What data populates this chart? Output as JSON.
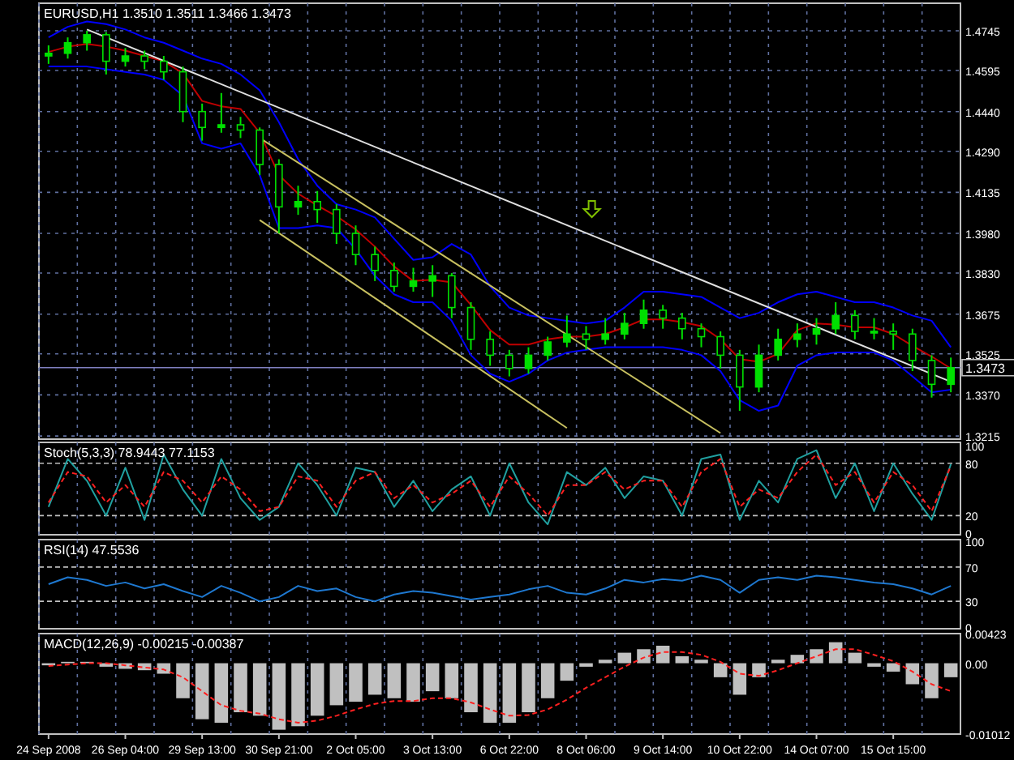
{
  "chart_data": [
    {
      "type": "candlestick",
      "title": "EURUSD,H1  1.3510 1.3511 1.3466 1.3473",
      "color": "#00e000",
      "categories": [
        null,
        null,
        null,
        null,
        null,
        null,
        null,
        null,
        null,
        null,
        null,
        null,
        null,
        null,
        null,
        null,
        null,
        null,
        null,
        null,
        null,
        null,
        null,
        null,
        null,
        null,
        null,
        null,
        null,
        null,
        null,
        null,
        null,
        null,
        null,
        null,
        null,
        null,
        null,
        null,
        null,
        null,
        null,
        null,
        null,
        null,
        null,
        null
      ],
      "ohlc": [
        [
          1.465,
          1.469,
          1.462,
          1.466
        ],
        [
          1.466,
          1.472,
          1.464,
          1.47
        ],
        [
          1.47,
          1.4745,
          1.467,
          1.473
        ],
        [
          1.473,
          1.474,
          1.458,
          1.463
        ],
        [
          1.463,
          1.468,
          1.461,
          1.465
        ],
        [
          1.465,
          1.467,
          1.46,
          1.463
        ],
        [
          1.463,
          1.465,
          1.456,
          1.459
        ],
        [
          1.459,
          1.461,
          1.44,
          1.444
        ],
        [
          1.444,
          1.447,
          1.433,
          1.438
        ],
        [
          1.438,
          1.451,
          1.436,
          1.439
        ],
        [
          1.439,
          1.442,
          1.434,
          1.437
        ],
        [
          1.437,
          1.438,
          1.42,
          1.424
        ],
        [
          1.424,
          1.426,
          1.398,
          1.408
        ],
        [
          1.408,
          1.416,
          1.405,
          1.41
        ],
        [
          1.41,
          1.414,
          1.402,
          1.407
        ],
        [
          1.407,
          1.409,
          1.394,
          1.398
        ],
        [
          1.398,
          1.401,
          1.386,
          1.39
        ],
        [
          1.39,
          1.393,
          1.38,
          1.384
        ],
        [
          1.384,
          1.387,
          1.376,
          1.378
        ],
        [
          1.378,
          1.385,
          1.376,
          1.38
        ],
        [
          1.38,
          1.386,
          1.374,
          1.382
        ],
        [
          1.382,
          1.383,
          1.366,
          1.37
        ],
        [
          1.37,
          1.372,
          1.354,
          1.358
        ],
        [
          1.358,
          1.361,
          1.348,
          1.352
        ],
        [
          1.352,
          1.354,
          1.344,
          1.347
        ],
        [
          1.347,
          1.355,
          1.345,
          1.352
        ],
        [
          1.352,
          1.359,
          1.35,
          1.357
        ],
        [
          1.357,
          1.367,
          1.355,
          1.36
        ],
        [
          1.36,
          1.363,
          1.354,
          1.358
        ],
        [
          1.358,
          1.366,
          1.356,
          1.36
        ],
        [
          1.36,
          1.368,
          1.358,
          1.364
        ],
        [
          1.364,
          1.373,
          1.362,
          1.369
        ],
        [
          1.369,
          1.371,
          1.362,
          1.366
        ],
        [
          1.366,
          1.368,
          1.358,
          1.362
        ],
        [
          1.362,
          1.364,
          1.355,
          1.359
        ],
        [
          1.359,
          1.361,
          1.347,
          1.352
        ],
        [
          1.352,
          1.354,
          1.331,
          1.34
        ],
        [
          1.34,
          1.356,
          1.338,
          1.352
        ],
        [
          1.352,
          1.362,
          1.35,
          1.358
        ],
        [
          1.358,
          1.364,
          1.355,
          1.36
        ],
        [
          1.36,
          1.366,
          1.356,
          1.362
        ],
        [
          1.362,
          1.372,
          1.36,
          1.367
        ],
        [
          1.367,
          1.369,
          1.358,
          1.361
        ],
        [
          1.361,
          1.366,
          1.358,
          1.361
        ],
        [
          1.361,
          1.364,
          1.354,
          1.36
        ],
        [
          1.36,
          1.362,
          1.346,
          1.35
        ],
        [
          1.35,
          1.352,
          1.336,
          1.341
        ],
        [
          1.341,
          1.3511,
          1.338,
          1.3473
        ]
      ],
      "series": [
        {
          "type": "line",
          "color": "#0000ff",
          "values": [
            1.472,
            1.476,
            1.478,
            1.477,
            1.475,
            1.472,
            1.47,
            1.467,
            1.464,
            1.462,
            1.458,
            1.452,
            1.44,
            1.426,
            1.416,
            1.409,
            1.407,
            1.404,
            1.396,
            1.388,
            1.389,
            1.394,
            1.39,
            1.378,
            1.37,
            1.367,
            1.366,
            1.365,
            1.364,
            1.365,
            1.37,
            1.376,
            1.376,
            1.375,
            1.374,
            1.37,
            1.366,
            1.368,
            1.372,
            1.375,
            1.376,
            1.374,
            1.372,
            1.372,
            1.37,
            1.367,
            1.365,
            1.355
          ]
        },
        {
          "type": "line",
          "color": "#0000ff",
          "values": [
            1.461,
            1.461,
            1.461,
            1.46,
            1.459,
            1.458,
            1.456,
            1.45,
            1.432,
            1.43,
            1.432,
            1.42,
            1.4,
            1.4,
            1.401,
            1.4,
            1.392,
            1.382,
            1.375,
            1.372,
            1.372,
            1.365,
            1.352,
            1.345,
            1.342,
            1.345,
            1.35,
            1.353,
            1.354,
            1.355,
            1.355,
            1.355,
            1.355,
            1.354,
            1.352,
            1.346,
            1.335,
            1.331,
            1.333,
            1.348,
            1.352,
            1.353,
            1.353,
            1.353,
            1.35,
            1.344,
            1.338,
            1.339
          ]
        },
        {
          "type": "line",
          "color": "#c00000",
          "values": [
            1.4665,
            1.4685,
            1.4695,
            1.4685,
            1.467,
            1.465,
            1.463,
            1.4585,
            1.448,
            1.446,
            1.445,
            1.436,
            1.42,
            1.413,
            1.4085,
            1.4045,
            1.3995,
            1.393,
            1.3855,
            1.38,
            1.3805,
            1.3795,
            1.371,
            1.3615,
            1.356,
            1.356,
            1.358,
            1.359,
            1.359,
            1.36,
            1.3625,
            1.3655,
            1.3655,
            1.3645,
            1.363,
            1.358,
            1.3505,
            1.3495,
            1.3525,
            1.3615,
            1.364,
            1.3635,
            1.3625,
            1.3625,
            1.36,
            1.3555,
            1.3515,
            1.347
          ]
        },
        {
          "type": "line",
          "color": "#e0e0e0",
          "values": [
            null,
            null,
            1.475,
            null,
            null,
            null,
            null,
            null,
            null,
            null,
            null,
            null,
            null,
            null,
            null,
            null,
            null,
            null,
            null,
            null,
            null,
            null,
            null,
            null,
            null,
            null,
            null,
            null,
            null,
            null,
            null,
            null,
            null,
            null,
            null,
            null,
            null,
            null,
            null,
            null,
            null,
            null,
            null,
            null,
            null,
            null,
            null,
            1.342
          ]
        },
        {
          "type": "line",
          "color": "#c8c060",
          "values": [
            null,
            null,
            null,
            null,
            null,
            null,
            null,
            null,
            null,
            null,
            null,
            1.434,
            null,
            null,
            null,
            null,
            null,
            null,
            null,
            null,
            null,
            null,
            null,
            null,
            null,
            null,
            null,
            null,
            null,
            null,
            null,
            null,
            null,
            null,
            null,
            1.3226,
            null,
            null,
            null,
            null,
            null,
            null,
            null,
            null,
            null,
            null,
            null,
            null
          ]
        },
        {
          "type": "line",
          "color": "#c8c060",
          "values": [
            null,
            null,
            null,
            null,
            null,
            null,
            null,
            null,
            null,
            null,
            null,
            1.403,
            null,
            null,
            null,
            null,
            null,
            null,
            null,
            null,
            null,
            null,
            null,
            null,
            null,
            null,
            null,
            1.3245,
            null,
            null,
            null,
            null,
            null,
            null,
            null,
            null,
            null,
            null,
            null,
            null,
            null,
            null,
            null,
            null,
            null,
            null,
            null,
            null
          ]
        }
      ],
      "ylim": [
        1.3203,
        1.4849
      ],
      "yticks": [
        1.4745,
        {
          "value": 1.4595,
          "label": "1.4595"
        },
        {
          "value": 1.444,
          "label": "1.4440"
        },
        {
          "value": 1.429,
          "label": "1.4290"
        },
        {
          "value": 1.4135,
          "label": "1.4135"
        },
        {
          "value": 1.398,
          "label": "1.3980"
        },
        {
          "value": 1.383,
          "label": "1.3830"
        },
        {
          "value": 1.3675,
          "label": "1.3675"
        },
        {
          "value": 1.3525,
          "label": "1.3525"
        },
        {
          "value": 1.337,
          "label": "1.3370"
        },
        {
          "value": 1.3215,
          "label": "1.3215"
        }
      ],
      "ref_lines": [
        {
          "axis": "y",
          "value": 1.3473,
          "label": "1.3473",
          "color": "#8080c0"
        }
      ],
      "grid": true,
      "tick_labels": "y"
    },
    {
      "type": "line",
      "title": "Stoch(5,3,3) 78.9443 77.1153",
      "categories": [
        null,
        null,
        null,
        null,
        null,
        null,
        null,
        null,
        null,
        null,
        null,
        null,
        null,
        null,
        null,
        null,
        null,
        null,
        null,
        null,
        null,
        null,
        null,
        null,
        null,
        null,
        null,
        null,
        null,
        null,
        null,
        null,
        null,
        null,
        null,
        null,
        null,
        null,
        null,
        null,
        null,
        null,
        null,
        null,
        null,
        null,
        null,
        null
      ],
      "series": [
        {
          "color": "#20a0a0",
          "values": [
            30,
            85,
            60,
            20,
            75,
            15,
            90,
            50,
            20,
            85,
            40,
            15,
            30,
            80,
            55,
            20,
            75,
            70,
            30,
            60,
            25,
            50,
            65,
            20,
            80,
            35,
            10,
            70,
            55,
            75,
            40,
            65,
            60,
            20,
            85,
            90,
            15,
            60,
            35,
            85,
            95,
            40,
            80,
            25,
            80,
            45,
            15,
            79
          ]
        },
        {
          "color": "#ff2020",
          "line_style": "dashed",
          "values": [
            35,
            70,
            65,
            35,
            55,
            30,
            70,
            60,
            35,
            65,
            50,
            25,
            30,
            65,
            60,
            30,
            60,
            70,
            40,
            55,
            35,
            45,
            60,
            30,
            65,
            45,
            20,
            55,
            55,
            70,
            50,
            60,
            60,
            30,
            70,
            85,
            30,
            50,
            40,
            70,
            90,
            55,
            70,
            35,
            70,
            55,
            25,
            77
          ]
        }
      ],
      "ylim": [
        -2,
        104
      ],
      "yticks": [
        0,
        20,
        80,
        100
      ],
      "ref_lines": [
        {
          "axis": "y",
          "value": 20,
          "color": "#c0c0c0",
          "line_style": "dashed"
        },
        {
          "axis": "y",
          "value": 80,
          "color": "#c0c0c0",
          "line_style": "dashed"
        }
      ],
      "grid": "x",
      "tick_labels": "y"
    },
    {
      "type": "line",
      "title": "RSI(14) 47.5536",
      "categories": [
        null,
        null,
        null,
        null,
        null,
        null,
        null,
        null,
        null,
        null,
        null,
        null,
        null,
        null,
        null,
        null,
        null,
        null,
        null,
        null,
        null,
        null,
        null,
        null,
        null,
        null,
        null,
        null,
        null,
        null,
        null,
        null,
        null,
        null,
        null,
        null,
        null,
        null,
        null,
        null,
        null,
        null,
        null,
        null,
        null,
        null,
        null,
        null
      ],
      "series": [
        {
          "color": "#1e78d0",
          "values": [
            50,
            58,
            55,
            48,
            52,
            45,
            50,
            42,
            35,
            48,
            40,
            30,
            35,
            48,
            42,
            45,
            35,
            30,
            38,
            42,
            40,
            36,
            32,
            35,
            38,
            44,
            48,
            40,
            38,
            45,
            55,
            52,
            56,
            54,
            60,
            55,
            40,
            55,
            58,
            55,
            60,
            58,
            55,
            52,
            50,
            45,
            38,
            48
          ]
        }
      ],
      "ylim": [
        -2,
        102
      ],
      "yticks": [
        0,
        30,
        70,
        100
      ],
      "ref_lines": [
        {
          "axis": "y",
          "value": 30,
          "color": "#c0c0c0",
          "line_style": "dashed"
        },
        {
          "axis": "y",
          "value": 70,
          "color": "#c0c0c0",
          "line_style": "dashed"
        }
      ],
      "grid": "x",
      "tick_labels": "y"
    },
    {
      "type": "bar",
      "title": "MACD(12,26,9) -0.00215 -0.00387",
      "categories": [
        "24 Sep 2008",
        null,
        null,
        null,
        "26 Sep 04:00",
        null,
        null,
        null,
        "29 Sep 13:00",
        null,
        null,
        null,
        "30 Sep 21:00",
        null,
        null,
        null,
        "2 Oct 05:00",
        null,
        null,
        null,
        "3 Oct 13:00",
        null,
        null,
        null,
        "6 Oct 22:00",
        null,
        null,
        null,
        "8 Oct 06:00",
        null,
        null,
        null,
        "9 Oct 14:00",
        null,
        null,
        null,
        "10 Oct 22:00",
        null,
        null,
        null,
        "14 Oct 07:00",
        null,
        null,
        null,
        "15 Oct 15:00",
        null,
        null,
        null
      ],
      "series": [
        {
          "type": "bar",
          "color": "#c0c0c0",
          "values": [
            -0.0003,
            0.0002,
            0.0002,
            -0.0005,
            -0.0008,
            -0.001,
            -0.0015,
            -0.005,
            -0.008,
            -0.0085,
            -0.007,
            -0.0075,
            -0.0095,
            -0.009,
            -0.0075,
            -0.006,
            -0.0055,
            -0.0045,
            -0.005,
            -0.0055,
            -0.004,
            -0.005,
            -0.007,
            -0.0085,
            -0.0085,
            -0.007,
            -0.005,
            -0.0025,
            -0.0005,
            0.0005,
            0.0015,
            0.002,
            0.0025,
            0.001,
            0.0005,
            -0.002,
            -0.0045,
            -0.002,
            0.0005,
            0.0012,
            0.002,
            0.003,
            0.0015,
            -0.0005,
            -0.0012,
            -0.003,
            -0.005,
            -0.002
          ]
        },
        {
          "type": "line",
          "color": "#ff2020",
          "line_style": "dashed",
          "values": [
            -0.0004,
            -0.0002,
            0,
            0,
            -0.0003,
            -0.0006,
            -0.0009,
            -0.002,
            -0.004,
            -0.006,
            -0.0068,
            -0.0072,
            -0.008,
            -0.0085,
            -0.0082,
            -0.0075,
            -0.0066,
            -0.0058,
            -0.0054,
            -0.0054,
            -0.005,
            -0.005,
            -0.0056,
            -0.0066,
            -0.0075,
            -0.0074,
            -0.0066,
            -0.0052,
            -0.0035,
            -0.002,
            -0.0005,
            0.0008,
            0.0016,
            0.0016,
            0.0012,
            0.0002,
            -0.0015,
            -0.0018,
            -0.001,
            0,
            0.001,
            0.002,
            0.002,
            0.0012,
            0.0003,
            -0.0012,
            -0.003,
            -0.004
          ]
        }
      ],
      "ylim": [
        -0.01012,
        0.00423
      ],
      "yticks": [
        0.00423,
        {
          "value": 0,
          "label": "0.00"
        },
        -0.01012
      ],
      "grid": "x"
    }
  ]
}
